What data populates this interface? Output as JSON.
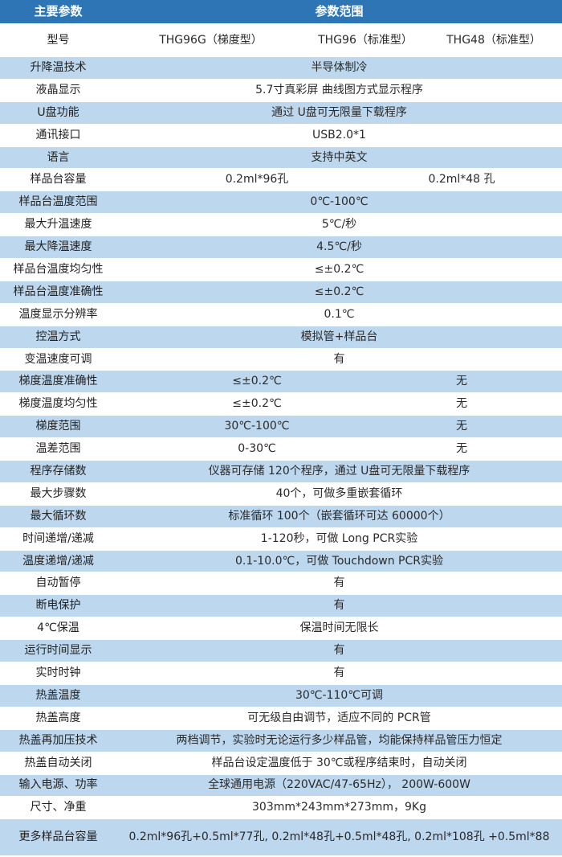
{
  "header": {
    "col1": "主要参数",
    "col2": "参数范围"
  },
  "model_row": {
    "label": "型号",
    "values": [
      "THG96G（梯度型）",
      "THG96（标准型）",
      "THG48（标准型）"
    ]
  },
  "rows": [
    {
      "label": "升降温技术",
      "value": "半导体制冷"
    },
    {
      "label": "液晶显示",
      "value": "5.7寸真彩屏  曲线图方式显示程序"
    },
    {
      "label": "U盘功能",
      "value": "通过 U盘可无限量下载程序"
    },
    {
      "label": "通讯接口",
      "value": "USB2.0*1"
    },
    {
      "label": "语言",
      "value": "支持中英文"
    },
    {
      "label": "样品台容量",
      "left": "0.2ml*96孔",
      "right": "0.2ml*48  孔"
    },
    {
      "label": "样品台温度范围",
      "value": "0℃-100℃"
    },
    {
      "label": "最大升温速度",
      "value": "5℃/秒"
    },
    {
      "label": "最大降温速度",
      "value": "4.5℃/秒"
    },
    {
      "label": "样品台温度均匀性",
      "value": "≤±0.2℃"
    },
    {
      "label": "样品台温度准确性",
      "value": "≤±0.2℃"
    },
    {
      "label": "温度显示分辨率",
      "value": "0.1℃"
    },
    {
      "label": "控温方式",
      "value": "模拟管+样品台"
    },
    {
      "label": "变温速度可调",
      "value": "有"
    },
    {
      "label": "梯度温度准确性",
      "left": "≤±0.2℃",
      "right": "无"
    },
    {
      "label": "梯度温度均匀性",
      "left": "≤±0.2℃",
      "right": "无"
    },
    {
      "label": "梯度范围",
      "left": "30℃-100℃",
      "right": "无"
    },
    {
      "label": "温差范围",
      "left": "0-30℃",
      "right": "无"
    },
    {
      "label": "程序存储数",
      "value": "仪器可存储 120个程序，通过 U盘可无限量下载程序"
    },
    {
      "label": "最大步骤数",
      "value": "40个，可做多重嵌套循环"
    },
    {
      "label": "最大循环数",
      "value": "标准循环 100个（嵌套循环可达 60000个）"
    },
    {
      "label": "时间递增/递减",
      "value": "1-120秒，可做 Long PCR实验"
    },
    {
      "label": "温度递增/递减",
      "value": "0.1-10.0℃，可做 Touchdown PCR实验"
    },
    {
      "label": "自动暂停",
      "value": "有"
    },
    {
      "label": "断电保护",
      "value": "有"
    },
    {
      "label": "4℃保温",
      "value": "保温时间无限长"
    },
    {
      "label": "运行时间显示",
      "value": "有"
    },
    {
      "label": "实时时钟",
      "value": "有"
    },
    {
      "label": "热盖温度",
      "value": "30℃-110℃可调"
    },
    {
      "label": "热盖高度",
      "value": "可无级自由调节，适应不同的 PCR管"
    },
    {
      "label": "热盖再加压技术",
      "value": "两档调节，实验时无论运行多少样品管，均能保持样品管压力恒定"
    },
    {
      "label": "热盖自动关闭",
      "value": "样品台设定温度低于 30℃或程序结束时，自动关闭"
    },
    {
      "label": "输入电源、功率",
      "value": "全球通用电源（220VAC/47-65Hz），  200W-600W"
    },
    {
      "label": "尺寸、净重",
      "value": "303mm*243mm*273mm，9Kg"
    },
    {
      "label": "更多样品台容量",
      "value": "0.2ml*96孔+0.5ml*77孔, 0.2ml*48孔+0.5ml*48孔, 0.2ml*108孔 +0.5ml*88"
    }
  ]
}
